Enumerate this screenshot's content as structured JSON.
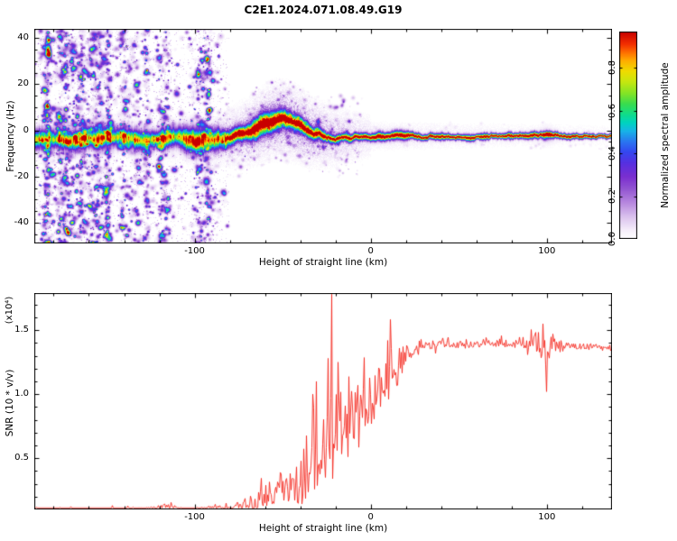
{
  "title": "C2E1.2024.071.08.49.G19",
  "colormap": {
    "max": 0.97,
    "stops": [
      [
        0,
        "#ffffff"
      ],
      [
        0.04,
        "#f6effb"
      ],
      [
        0.1,
        "#ddc6ef"
      ],
      [
        0.17,
        "#b98ae0"
      ],
      [
        0.24,
        "#9355d2"
      ],
      [
        0.3,
        "#7a2fd0"
      ],
      [
        0.36,
        "#5a2fe0"
      ],
      [
        0.42,
        "#3448f0"
      ],
      [
        0.47,
        "#2a78f0"
      ],
      [
        0.52,
        "#18b4e8"
      ],
      [
        0.56,
        "#00d4c0"
      ],
      [
        0.6,
        "#10dc8c"
      ],
      [
        0.65,
        "#38dc50"
      ],
      [
        0.7,
        "#80e428"
      ],
      [
        0.76,
        "#c8e810"
      ],
      [
        0.81,
        "#f0dc00"
      ],
      [
        0.86,
        "#ffae00"
      ],
      [
        0.9,
        "#ff7000"
      ],
      [
        0.94,
        "#f43000"
      ],
      [
        1.0,
        "#c80000"
      ]
    ]
  },
  "chart_data": [
    {
      "type": "heatmap",
      "xlabel": "Height of straight line (km)",
      "ylabel": "Frequency (Hz)",
      "xlim": [
        -191,
        137
      ],
      "ylim": [
        -49,
        44
      ],
      "xticks": {
        "values": [
          -100,
          0,
          100
        ],
        "labels": [
          "-100",
          "0",
          "100"
        ],
        "minor_step": 20
      },
      "yticks": {
        "values": [
          -40,
          -20,
          0,
          20,
          40
        ],
        "labels": [
          "-40",
          "-20",
          "0",
          "20",
          "40"
        ],
        "minor_step": 5
      },
      "colorbar": {
        "label": "Normalized spectral amplitude",
        "max": 0.97,
        "ticks": {
          "values": [
            0,
            0.2,
            0.4,
            0.6,
            0.8
          ],
          "labels": [
            "0.0",
            "0.2",
            "0.4",
            "0.6",
            "0.8"
          ]
        }
      },
      "signal_ridge": {
        "description": "center frequency (Hz) of the occultation echo trace vs height (km)",
        "points": [
          [
            -191,
            -4.0
          ],
          [
            -180,
            -3.2
          ],
          [
            -170,
            -4.8
          ],
          [
            -160,
            -3.2
          ],
          [
            -150,
            -4.2
          ],
          [
            -140,
            -2.6
          ],
          [
            -130,
            -4.8
          ],
          [
            -120,
            -4.2
          ],
          [
            -110,
            -3.2
          ],
          [
            -100,
            -4.6
          ],
          [
            -90,
            -4.2
          ],
          [
            -82,
            -3.4
          ],
          [
            -75,
            -2.2
          ],
          [
            -70,
            -1.0
          ],
          [
            -65,
            1.0
          ],
          [
            -60,
            2.8
          ],
          [
            -55,
            4.2
          ],
          [
            -50,
            4.9
          ],
          [
            -45,
            3.8
          ],
          [
            -40,
            1.8
          ],
          [
            -35,
            -0.2
          ],
          [
            -30,
            -1.6
          ],
          [
            -25,
            -2.4
          ],
          [
            -20,
            -3.0
          ],
          [
            -15,
            -2.4
          ],
          [
            -10,
            -3.0
          ],
          [
            -5,
            -2.6
          ],
          [
            0,
            -2.6
          ],
          [
            20,
            -2.5
          ],
          [
            50,
            -2.3
          ],
          [
            100,
            -2.2
          ],
          [
            137,
            -2.2
          ]
        ],
        "sigma_hz": [
          [
            -191,
            2.8
          ],
          [
            -90,
            2.8
          ],
          [
            -75,
            2.0
          ],
          [
            -55,
            2.4
          ],
          [
            -40,
            2.0
          ],
          [
            -25,
            1.6
          ],
          [
            -10,
            1.4
          ],
          [
            0,
            1.1
          ],
          [
            30,
            0.95
          ],
          [
            80,
            0.85
          ],
          [
            137,
            0.75
          ]
        ],
        "peak_amplitude": 0.95
      },
      "noise": {
        "seed": 1337,
        "speckle_region_km": [
          -191,
          -80
        ],
        "speckle_blob_count": 3200,
        "streak_count": 22,
        "bump_region_km": [
          -85,
          -5
        ],
        "bump_blob_count": 480,
        "right_sparse_count": 50,
        "right_cluster_km": 100,
        "halo_center_km": -50,
        "halo_sigma_hz": 6
      }
    },
    {
      "type": "line",
      "xlabel": "Height of straight line (km)",
      "ylabel": "SNR (10 * v/v)",
      "y_scale_note": "(x10⁴)",
      "xlim": [
        -191,
        137
      ],
      "ylim": [
        0.1,
        1.79
      ],
      "xticks": {
        "values": [
          -100,
          0,
          100
        ],
        "labels": [
          "-100",
          "0",
          "100"
        ],
        "minor_step": 20
      },
      "yticks": {
        "values": [
          0.5,
          1.0,
          1.5
        ],
        "labels": [
          "0.5",
          "1.0",
          "1.5"
        ],
        "minor_step": 0.1
      },
      "series": [
        {
          "name": "SNR",
          "color": "#f5291f",
          "seed": 99,
          "envelope_mean": [
            [
              -191,
              0.1
            ],
            [
              -170,
              0.095
            ],
            [
              -150,
              0.1
            ],
            [
              -135,
              0.105
            ],
            [
              -125,
              0.1
            ],
            [
              -117,
              0.13
            ],
            [
              -110,
              0.11
            ],
            [
              -100,
              0.1
            ],
            [
              -90,
              0.105
            ],
            [
              -82,
              0.11
            ],
            [
              -75,
              0.13
            ],
            [
              -68,
              0.16
            ],
            [
              -60,
              0.2
            ],
            [
              -52,
              0.25
            ],
            [
              -45,
              0.28
            ],
            [
              -40,
              0.32
            ],
            [
              -35,
              0.4
            ],
            [
              -30,
              0.5
            ],
            [
              -25,
              0.6
            ],
            [
              -20,
              0.7
            ],
            [
              -15,
              0.75
            ],
            [
              -10,
              0.8
            ],
            [
              -5,
              0.85
            ],
            [
              0,
              0.92
            ],
            [
              5,
              1.02
            ],
            [
              10,
              1.12
            ],
            [
              15,
              1.2
            ],
            [
              20,
              1.3
            ],
            [
              25,
              1.35
            ],
            [
              30,
              1.38
            ],
            [
              40,
              1.4
            ],
            [
              55,
              1.38
            ],
            [
              70,
              1.4
            ],
            [
              85,
              1.39
            ],
            [
              93,
              1.41
            ],
            [
              100,
              1.3
            ],
            [
              104,
              1.37
            ],
            [
              115,
              1.38
            ],
            [
              137,
              1.36
            ]
          ],
          "envelope_halfrange": [
            [
              -191,
              0.015
            ],
            [
              -150,
              0.015
            ],
            [
              -125,
              0.02
            ],
            [
              -110,
              0.015
            ],
            [
              -90,
              0.02
            ],
            [
              -80,
              0.03
            ],
            [
              -70,
              0.05
            ],
            [
              -60,
              0.09
            ],
            [
              -52,
              0.12
            ],
            [
              -45,
              0.14
            ],
            [
              -40,
              0.18
            ],
            [
              -35,
              0.22
            ],
            [
              -30,
              0.3
            ],
            [
              -25,
              0.35
            ],
            [
              -20,
              0.35
            ],
            [
              -15,
              0.3
            ],
            [
              -10,
              0.28
            ],
            [
              -5,
              0.25
            ],
            [
              0,
              0.22
            ],
            [
              5,
              0.2
            ],
            [
              10,
              0.18
            ],
            [
              15,
              0.15
            ],
            [
              20,
              0.1
            ],
            [
              25,
              0.06
            ],
            [
              30,
              0.045
            ],
            [
              40,
              0.03
            ],
            [
              60,
              0.03
            ],
            [
              85,
              0.03
            ],
            [
              93,
              0.06
            ],
            [
              100,
              0.1
            ],
            [
              105,
              0.05
            ],
            [
              115,
              0.025
            ],
            [
              137,
              0.025
            ]
          ],
          "spikes": [
            [
              -22.3,
              1.78
            ],
            [
              -24.5,
              1.28
            ],
            [
              -18.6,
              1.25
            ],
            [
              -31.0,
              1.1
            ],
            [
              97.6,
              1.55
            ],
            [
              98.6,
              1.42
            ],
            [
              99.8,
              1.02
            ]
          ]
        }
      ]
    }
  ]
}
